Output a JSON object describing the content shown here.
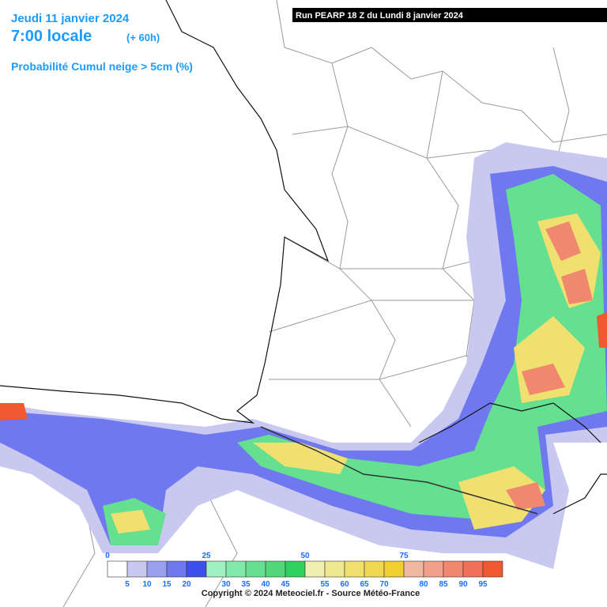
{
  "header": {
    "date": "Jeudi 11 janvier 2024",
    "time": "7:00 locale",
    "lead": "(+ 60h)",
    "product": "Probabilité Cumul neige > 5cm (%)",
    "run": "Run PEARP 18 Z du Lundi 8 janvier 2024"
  },
  "legend": {
    "colors": [
      "#ffffff",
      "#c8c8f0",
      "#9aa0f0",
      "#6f78ee",
      "#3c4fe8",
      "#a0f0c0",
      "#80e8a8",
      "#64e090",
      "#50d878",
      "#30d060",
      "#f0eeb0",
      "#f0e890",
      "#f0e070",
      "#f0d850",
      "#f0d030",
      "#f0b8a0",
      "#f0a088",
      "#f08870",
      "#f07058",
      "#f05830"
    ],
    "labels": [
      0,
      5,
      10,
      15,
      20,
      25,
      30,
      35,
      40,
      45,
      50,
      55,
      60,
      65,
      70,
      75,
      80,
      85,
      90,
      95
    ]
  },
  "footer": {
    "copyright": "Copyright © 2024 Meteociel.fr - Source Météo-France"
  }
}
